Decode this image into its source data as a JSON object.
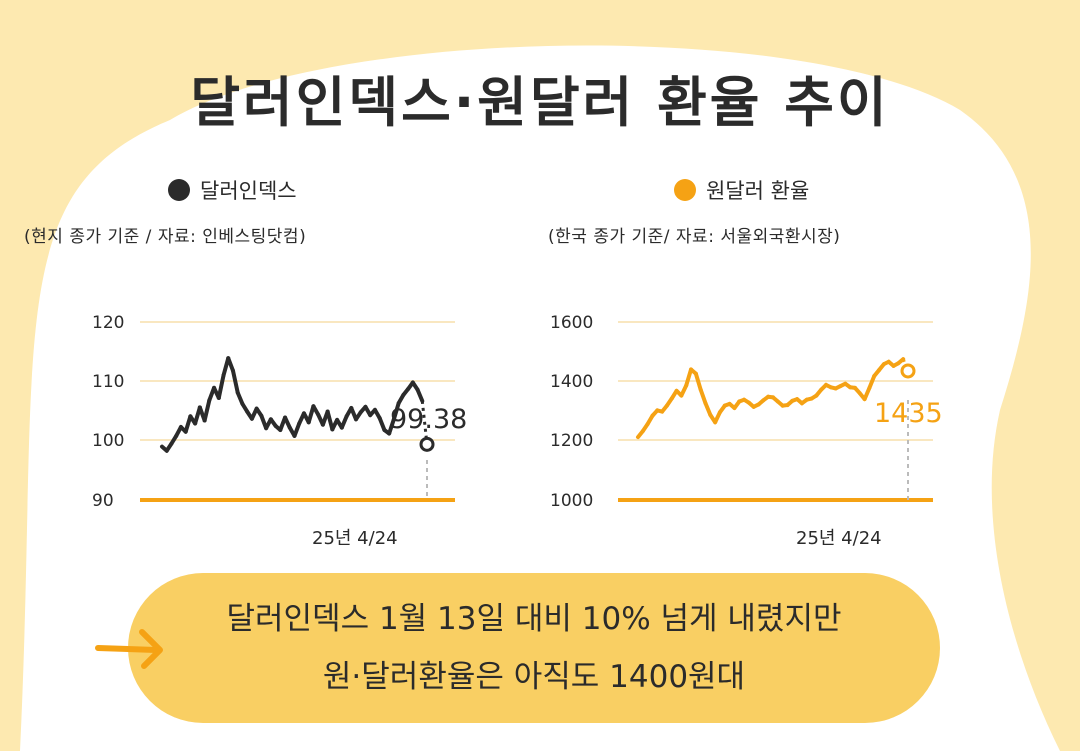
{
  "title": "달러인덱스·원달러 환율 추이",
  "colors": {
    "background": "#fde9b0",
    "panel": "#ffffff",
    "dark_series": "#2b2b2b",
    "orange_series": "#f5a214",
    "callout": "#f9cf63",
    "gridline": "#f9e7c0"
  },
  "callout": {
    "line1": "달러인덱스 1월 13일 대비 10% 넘게 내렸지만",
    "line2": "원·달러환율은 아직도 1400원대",
    "icon": "arrow-right-icon"
  },
  "chart_data": [
    {
      "type": "line",
      "legend": "달러인덱스",
      "source": "(현지 종가 기준 / 자료: 인베스팅닷컴)",
      "color": "#2b2b2b",
      "yticks": [
        "120",
        "110",
        "100",
        "90"
      ],
      "ylim": [
        90,
        120
      ],
      "date_label": "25년 4/24",
      "end_value_label": "99.38",
      "end_value": 99.38,
      "series": [
        {
          "values": [
            99.0,
            98.3,
            99.5,
            100.8,
            102.3,
            101.5,
            104.1,
            102.9,
            105.6,
            103.4,
            106.8,
            108.9,
            107.2,
            111.0,
            113.9,
            111.8,
            108.1,
            106.2,
            104.9,
            103.7,
            105.4,
            104.2,
            102.1,
            103.6,
            102.5,
            101.8,
            103.9,
            102.2,
            100.8,
            102.9,
            104.6,
            103.1,
            105.8,
            104.4,
            102.7,
            104.9,
            101.9,
            103.5,
            102.2,
            104.1,
            105.5,
            103.6,
            104.8,
            105.7,
            104.3,
            105.2,
            103.8,
            101.8,
            101.2,
            103.6,
            106.3,
            107.7,
            108.7,
            109.8,
            108.6,
            106.7,
            99.38
          ]
        }
      ]
    },
    {
      "type": "line",
      "legend": "원달러 환율",
      "source": "(한국 종가 기준/ 자료: 서울외국환시장)",
      "color": "#f5a214",
      "yticks": [
        "1600",
        "1400",
        "1200",
        "1000"
      ],
      "ylim": [
        1000,
        1600
      ],
      "date_label": "25년 4/24",
      "end_value_label": "1435",
      "end_value": 1435,
      "series": [
        {
          "values": [
            1212,
            1232,
            1256,
            1284,
            1302,
            1298,
            1318,
            1342,
            1368,
            1352,
            1386,
            1440,
            1426,
            1372,
            1326,
            1287,
            1262,
            1296,
            1318,
            1324,
            1310,
            1332,
            1338,
            1328,
            1314,
            1322,
            1336,
            1348,
            1346,
            1332,
            1318,
            1320,
            1334,
            1340,
            1326,
            1338,
            1342,
            1352,
            1372,
            1388,
            1380,
            1376,
            1384,
            1392,
            1380,
            1378,
            1360,
            1340,
            1378,
            1418,
            1438,
            1458,
            1466,
            1452,
            1461,
            1475,
            1435
          ]
        }
      ]
    }
  ]
}
